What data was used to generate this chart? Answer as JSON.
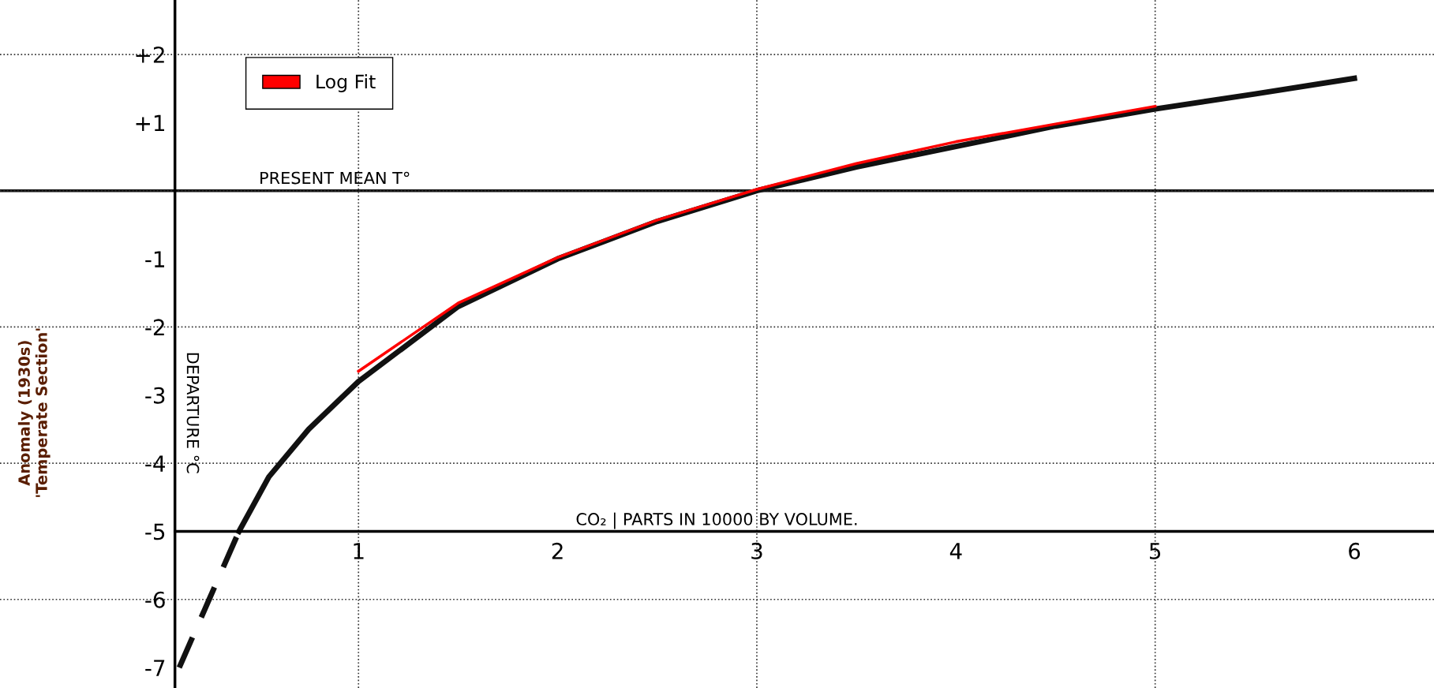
{
  "chart_data": {
    "type": "line",
    "ylabel": "Anomaly (1930s)\n'Temperate Section'",
    "xlabel": "CO₂ | PARTS IN 10000 BY VOLUME.",
    "annotations": [
      "DEPARTURE °C"
    ],
    "xlim": [
      -0.8,
      6.4
    ],
    "ylim": [
      -7.3,
      2.8
    ],
    "xticks": [
      1,
      2,
      3,
      4,
      5,
      6
    ],
    "yticks": [
      {
        "value": 2,
        "label": "+2"
      },
      {
        "value": 1,
        "label": "+1"
      },
      -1,
      -2,
      -3,
      -4,
      -5,
      -6,
      -7
    ],
    "ref_lines": [
      {
        "axis": "y",
        "value": 0,
        "label": "PRESENT MEAN T°",
        "color": "#111111",
        "line_style": "solid"
      },
      {
        "axis": "y",
        "value": 2,
        "label": null,
        "color": "#333333",
        "line_style": "dotted"
      },
      {
        "axis": "y",
        "value": 0,
        "label": null,
        "color": "#333333",
        "line_style": "dotted"
      },
      {
        "axis": "y",
        "value": -2,
        "label": null,
        "color": "#333333",
        "line_style": "dotted"
      },
      {
        "axis": "y",
        "value": -4,
        "label": null,
        "color": "#333333",
        "line_style": "dotted"
      },
      {
        "axis": "y",
        "value": -6,
        "label": null,
        "color": "#333333",
        "line_style": "dotted"
      },
      {
        "axis": "x",
        "value": 1,
        "label": null,
        "color": "#333333",
        "line_style": "dotted"
      },
      {
        "axis": "x",
        "value": 3,
        "label": null,
        "color": "#333333",
        "line_style": "dotted"
      },
      {
        "axis": "x",
        "value": 5,
        "label": null,
        "color": "#333333",
        "line_style": "dotted"
      }
    ],
    "legend": "top left",
    "series": [
      {
        "color": "#111111",
        "line_style": "dashed",
        "x": [
          0.1,
          0.25,
          0.4
        ],
        "values": [
          -7.0,
          -6.0,
          -5.0
        ]
      },
      {
        "color": "#111111",
        "line_style": "solid",
        "x": [
          0.4,
          0.55,
          0.75,
          1,
          1.5,
          2,
          2.5,
          3,
          3.5,
          4,
          4.5,
          5,
          5.5,
          6
        ],
        "values": [
          -5.0,
          -4.2,
          -3.5,
          -2.8,
          -1.7,
          -1.0,
          -0.45,
          0,
          0.35,
          0.65,
          0.95,
          1.2,
          1.42,
          1.65
        ]
      },
      {
        "name": "Log Fit",
        "color": "#ff0000",
        "line_style": "solid",
        "x": [
          1,
          1.5,
          2,
          2.5,
          3,
          3.5,
          4,
          4.5,
          5
        ],
        "values": [
          -2.65,
          -1.65,
          -0.98,
          -0.43,
          0.02,
          0.4,
          0.72,
          0.98,
          1.24
        ]
      }
    ]
  }
}
